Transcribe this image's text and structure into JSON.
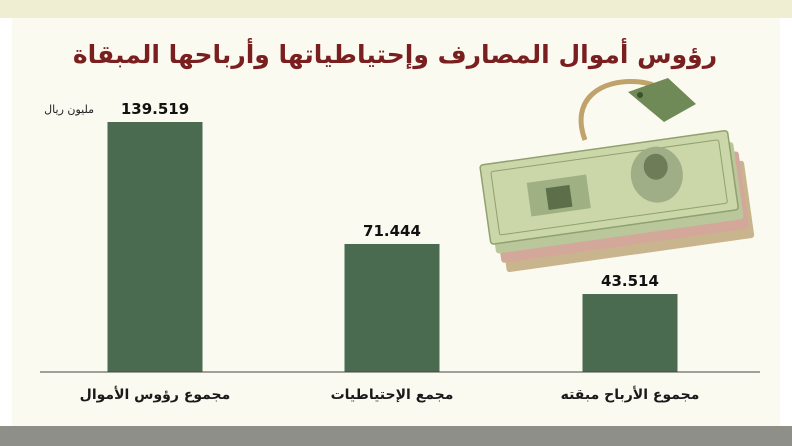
{
  "chart_data": {
    "type": "bar",
    "title": "رؤوس أموال المصارف وإحتياطياتها وأرباحها المبقاة",
    "unit": "مليون ريال",
    "categories": [
      "مجموع رؤوس الأموال",
      "مجمع الإحتياطيات",
      "مجموع الأرباح مبقته"
    ],
    "values": [
      139.519,
      71.444,
      43.514
    ],
    "value_labels": [
      "139.519",
      "71.444",
      "43.514"
    ],
    "ylim": [
      0,
      139.519
    ],
    "grid": false,
    "legend": "none",
    "colors": {
      "bar": "#4a6b4f",
      "title": "#7a1f20",
      "axis": "#444444"
    }
  },
  "illustration": {
    "icon": "banknotes-icon"
  }
}
